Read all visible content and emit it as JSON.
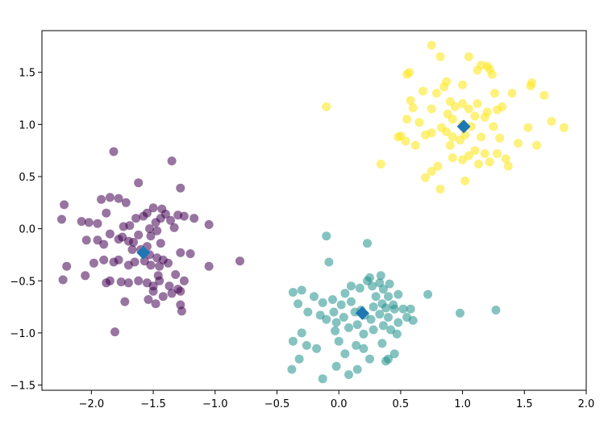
{
  "chart_data": {
    "type": "scatter",
    "title": "",
    "xlabel": "",
    "ylabel": "",
    "xlim": [
      -2.4,
      2.0
    ],
    "ylim": [
      -1.55,
      1.9
    ],
    "grid": false,
    "legend": false,
    "xticks": [
      -2.0,
      -1.5,
      -1.0,
      -0.5,
      0.0,
      0.5,
      1.0,
      1.5,
      2.0
    ],
    "xtick_labels": [
      "−2.0",
      "−1.5",
      "−1.0",
      "−0.5",
      "0.0",
      "0.5",
      "1.0",
      "1.5",
      "2.0"
    ],
    "yticks": [
      -1.5,
      -1.0,
      -0.5,
      0.0,
      0.5,
      1.0,
      1.5
    ],
    "ytick_labels": [
      "−1.5",
      "−1.0",
      "−0.5",
      "0.0",
      "0.5",
      "1.0",
      "1.5"
    ],
    "series": [
      {
        "color": "#440154",
        "opacity": 0.55,
        "points": [
          [
            -1.82,
            0.74
          ],
          [
            -1.35,
            0.65
          ],
          [
            -1.62,
            0.44
          ],
          [
            -1.28,
            0.39
          ],
          [
            -1.85,
            0.3
          ],
          [
            -1.78,
            0.29
          ],
          [
            -1.92,
            0.28
          ],
          [
            -1.72,
            0.25
          ],
          [
            -1.5,
            0.2
          ],
          [
            -1.43,
            0.19
          ],
          [
            -1.55,
            0.15
          ],
          [
            -1.4,
            0.14
          ],
          [
            -1.3,
            0.13
          ],
          [
            -1.25,
            0.12
          ],
          [
            -1.88,
            0.15
          ],
          [
            -1.58,
            0.12
          ],
          [
            -1.44,
            0.1
          ],
          [
            -1.17,
            0.1
          ],
          [
            -1.64,
            0.1
          ],
          [
            -2.08,
            0.07
          ],
          [
            -2.02,
            0.06
          ],
          [
            -1.95,
            0.05
          ],
          [
            -1.48,
            0.06
          ],
          [
            -1.36,
            0.08
          ],
          [
            -1.05,
            0.04
          ],
          [
            -1.69,
            0.03
          ],
          [
            -1.74,
            0.02
          ],
          [
            -1.53,
            0.0
          ],
          [
            -1.47,
            -0.02
          ],
          [
            -1.33,
            0.01
          ],
          [
            -1.85,
            -0.05
          ],
          [
            -1.62,
            -0.06
          ],
          [
            -1.52,
            -0.07
          ],
          [
            -1.78,
            -0.1
          ],
          [
            -1.75,
            -0.08
          ],
          [
            -1.7,
            -0.12
          ],
          [
            -1.66,
            -0.13
          ],
          [
            -1.95,
            -0.11
          ],
          [
            -2.04,
            -0.11
          ],
          [
            -1.9,
            -0.15
          ],
          [
            -1.44,
            -0.14
          ],
          [
            -1.55,
            -0.17
          ],
          [
            -1.67,
            -0.2
          ],
          [
            -1.6,
            -0.2
          ],
          [
            -1.58,
            -0.23
          ],
          [
            -1.53,
            -0.25
          ],
          [
            -1.47,
            -0.28
          ],
          [
            -1.42,
            -0.3
          ],
          [
            -1.38,
            -0.33
          ],
          [
            -1.28,
            -0.23
          ],
          [
            -1.2,
            -0.24
          ],
          [
            -1.78,
            -0.3
          ],
          [
            -1.82,
            -0.32
          ],
          [
            -1.7,
            -0.35
          ],
          [
            -1.65,
            -0.32
          ],
          [
            -1.57,
            -0.31
          ],
          [
            -1.52,
            -0.35
          ],
          [
            -1.45,
            -0.36
          ],
          [
            -2.2,
            -0.36
          ],
          [
            -1.98,
            -0.33
          ],
          [
            -1.9,
            -0.3
          ],
          [
            -1.05,
            -0.36
          ],
          [
            -0.8,
            -0.31
          ],
          [
            -2.23,
            -0.49
          ],
          [
            -2.05,
            -0.45
          ],
          [
            -1.85,
            -0.5
          ],
          [
            -1.76,
            -0.51
          ],
          [
            -1.7,
            -0.52
          ],
          [
            -1.62,
            -0.5
          ],
          [
            -1.55,
            -0.52
          ],
          [
            -1.5,
            -0.55
          ],
          [
            -1.45,
            -0.5
          ],
          [
            -1.37,
            -0.55
          ],
          [
            -1.3,
            -0.58
          ],
          [
            -1.25,
            -0.5
          ],
          [
            -1.46,
            -0.45
          ],
          [
            -1.32,
            -0.44
          ],
          [
            -1.5,
            -0.6
          ],
          [
            -1.42,
            -0.65
          ],
          [
            -1.35,
            -0.62
          ],
          [
            -1.28,
            -0.6
          ],
          [
            -1.88,
            -0.52
          ],
          [
            -1.73,
            -0.7
          ],
          [
            -1.54,
            -0.68
          ],
          [
            -1.48,
            -0.72
          ],
          [
            -1.28,
            -0.73
          ],
          [
            -1.27,
            -0.79
          ],
          [
            -1.81,
            -0.99
          ],
          [
            -2.22,
            0.23
          ],
          [
            -2.24,
            0.09
          ]
        ]
      },
      {
        "color": "#21918c",
        "opacity": 0.55,
        "points": [
          [
            -0.1,
            -0.07
          ],
          [
            0.23,
            -0.14
          ],
          [
            -0.08,
            -0.32
          ],
          [
            0.34,
            -0.45
          ],
          [
            0.25,
            -0.47
          ],
          [
            0.23,
            -0.5
          ],
          [
            0.33,
            -0.52
          ],
          [
            0.41,
            -0.53
          ],
          [
            0.1,
            -0.55
          ],
          [
            0.17,
            -0.57
          ],
          [
            0.27,
            -0.55
          ],
          [
            0.36,
            -0.58
          ],
          [
            -0.3,
            -0.59
          ],
          [
            -0.37,
            -0.61
          ],
          [
            0.05,
            -0.62
          ],
          [
            -0.2,
            -0.65
          ],
          [
            0.48,
            -0.63
          ],
          [
            0.72,
            -0.63
          ],
          [
            0.3,
            -0.65
          ],
          [
            0.4,
            -0.65
          ],
          [
            -0.05,
            -0.68
          ],
          [
            0.1,
            -0.7
          ],
          [
            -0.13,
            -0.71
          ],
          [
            -0.33,
            -0.72
          ],
          [
            0.35,
            -0.72
          ],
          [
            0.44,
            -0.73
          ],
          [
            0.02,
            -0.73
          ],
          [
            0.28,
            -0.75
          ],
          [
            0.38,
            -0.76
          ],
          [
            0.45,
            -0.77
          ],
          [
            0.52,
            -0.77
          ],
          [
            0.58,
            -0.77
          ],
          [
            -0.25,
            -0.8
          ],
          [
            -0.04,
            -0.8
          ],
          [
            0.13,
            -0.8
          ],
          [
            0.18,
            -0.78
          ],
          [
            0.21,
            -0.83
          ],
          [
            -0.15,
            -0.83
          ],
          [
            0.33,
            -0.82
          ],
          [
            0.4,
            -0.85
          ],
          [
            0.55,
            -0.85
          ],
          [
            0.6,
            -0.88
          ],
          [
            0.04,
            -0.85
          ],
          [
            -0.1,
            -0.87
          ],
          [
            0.26,
            -0.87
          ],
          [
            0.48,
            -0.9
          ],
          [
            -0.02,
            -0.9
          ],
          [
            0.15,
            -0.92
          ],
          [
            0.36,
            -0.93
          ],
          [
            0.08,
            -0.95
          ],
          [
            0.28,
            -0.97
          ],
          [
            0.42,
            -0.97
          ],
          [
            -0.03,
            -0.98
          ],
          [
            -0.3,
            -1.0
          ],
          [
            0.2,
            -1.01
          ],
          [
            0.47,
            -1.01
          ],
          [
            0.98,
            -0.81
          ],
          [
            1.27,
            -0.78
          ],
          [
            -0.37,
            -1.08
          ],
          [
            0.0,
            -1.08
          ],
          [
            0.35,
            -1.1
          ],
          [
            -0.26,
            -1.12
          ],
          [
            0.14,
            -1.12
          ],
          [
            0.2,
            -1.15
          ],
          [
            -0.18,
            -1.15
          ],
          [
            0.05,
            -1.2
          ],
          [
            0.45,
            -1.2
          ],
          [
            -0.32,
            -1.25
          ],
          [
            0.25,
            -1.25
          ],
          [
            0.4,
            -1.25
          ],
          [
            0.38,
            -1.27
          ],
          [
            -0.02,
            -1.32
          ],
          [
            0.15,
            -1.35
          ],
          [
            -0.38,
            -1.35
          ],
          [
            0.08,
            -1.4
          ],
          [
            -0.13,
            -1.44
          ]
        ]
      },
      {
        "color": "#fde725",
        "opacity": 0.6,
        "points": [
          [
            0.75,
            1.76
          ],
          [
            0.82,
            1.65
          ],
          [
            1.05,
            1.65
          ],
          [
            1.15,
            1.57
          ],
          [
            1.2,
            1.56
          ],
          [
            1.22,
            1.53
          ],
          [
            1.12,
            1.52
          ],
          [
            0.57,
            1.5
          ],
          [
            0.55,
            1.48
          ],
          [
            1.24,
            1.48
          ],
          [
            0.87,
            1.41
          ],
          [
            1.56,
            1.4
          ],
          [
            1.55,
            1.37
          ],
          [
            1.0,
            1.38
          ],
          [
            0.85,
            1.36
          ],
          [
            0.68,
            1.32
          ],
          [
            0.79,
            1.3
          ],
          [
            1.26,
            1.3
          ],
          [
            1.4,
            1.3
          ],
          [
            1.66,
            1.28
          ],
          [
            0.58,
            1.23
          ],
          [
            0.9,
            1.22
          ],
          [
            1.0,
            1.2
          ],
          [
            1.12,
            1.2
          ],
          [
            0.94,
            1.17
          ],
          [
            0.6,
            1.16
          ],
          [
            0.75,
            1.15
          ],
          [
            1.32,
            1.17
          ],
          [
            1.05,
            1.15
          ],
          [
            1.28,
            1.14
          ],
          [
            1.2,
            1.12
          ],
          [
            0.88,
            1.1
          ],
          [
            0.92,
            1.05
          ],
          [
            1.1,
            1.08
          ],
          [
            1.18,
            1.07
          ],
          [
            0.65,
            1.02
          ],
          [
            0.55,
            1.05
          ],
          [
            1.0,
            1.0
          ],
          [
            1.07,
            0.98
          ],
          [
            0.83,
            0.97
          ],
          [
            0.87,
            0.93
          ],
          [
            1.25,
            0.98
          ],
          [
            1.53,
            0.97
          ],
          [
            1.82,
            0.97
          ],
          [
            1.72,
            1.03
          ],
          [
            0.75,
            0.92
          ],
          [
            0.7,
            0.9
          ],
          [
            0.5,
            0.89
          ],
          [
            0.48,
            0.88
          ],
          [
            0.92,
            0.88
          ],
          [
            1.02,
            0.9
          ],
          [
            0.98,
            0.85
          ],
          [
            1.15,
            0.88
          ],
          [
            0.9,
            0.8
          ],
          [
            0.62,
            0.8
          ],
          [
            0.54,
            0.84
          ],
          [
            1.3,
            0.87
          ],
          [
            1.45,
            0.82
          ],
          [
            1.6,
            0.8
          ],
          [
            1.1,
            0.75
          ],
          [
            1.18,
            0.72
          ],
          [
            1.28,
            0.72
          ],
          [
            1.05,
            0.7
          ],
          [
            1.0,
            0.66
          ],
          [
            0.92,
            0.68
          ],
          [
            1.13,
            0.62
          ],
          [
            1.22,
            0.64
          ],
          [
            1.35,
            0.67
          ],
          [
            1.37,
            0.6
          ],
          [
            0.34,
            0.62
          ],
          [
            0.75,
            0.55
          ],
          [
            0.8,
            0.6
          ],
          [
            0.7,
            0.49
          ],
          [
            1.02,
            0.46
          ],
          [
            0.82,
            0.38
          ],
          [
            -0.1,
            1.17
          ]
        ]
      }
    ],
    "centroids": {
      "color": "#1f77b4",
      "marker": "diamond",
      "points": [
        [
          -1.58,
          -0.23
        ],
        [
          0.19,
          -0.81
        ],
        [
          1.01,
          0.98
        ]
      ]
    }
  }
}
